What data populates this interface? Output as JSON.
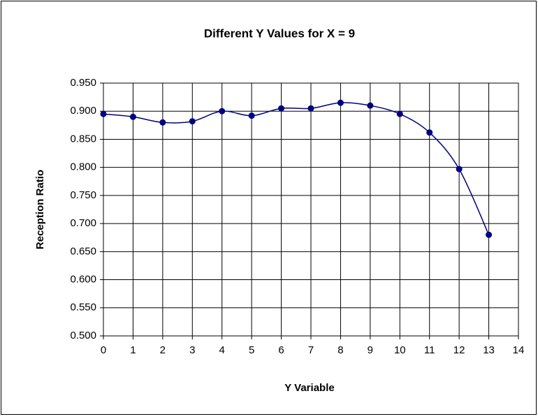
{
  "chart_data": {
    "type": "line",
    "title": "Different Y Values for X = 9",
    "x_label": "Y Variable",
    "y_label": "Reception Ratio",
    "x": [
      0,
      1,
      2,
      3,
      4,
      5,
      6,
      7,
      8,
      9,
      10,
      11,
      12,
      13
    ],
    "series": [
      {
        "name": "Reception Ratio",
        "color": "#000080",
        "values": [
          0.895,
          0.89,
          0.88,
          0.882,
          0.9,
          0.892,
          0.905,
          0.905,
          0.915,
          0.91,
          0.895,
          0.862,
          0.797,
          0.68
        ]
      }
    ],
    "xlim": [
      0,
      14
    ],
    "xticks": [
      0,
      1,
      2,
      3,
      4,
      5,
      6,
      7,
      8,
      9,
      10,
      11,
      12,
      13,
      14
    ],
    "ylim": [
      0.5,
      0.95
    ],
    "yticks": [
      {
        "value": 0.5,
        "label": "0.500"
      },
      {
        "value": 0.55,
        "label": "0.550"
      },
      {
        "value": 0.6,
        "label": "0.600"
      },
      {
        "value": 0.65,
        "label": "0.650"
      },
      {
        "value": 0.7,
        "label": "0.700"
      },
      {
        "value": 0.75,
        "label": "0.750"
      },
      {
        "value": 0.8,
        "label": "0.800"
      },
      {
        "value": 0.85,
        "label": "0.850"
      },
      {
        "value": 0.9,
        "label": "0.900"
      },
      {
        "value": 0.95,
        "label": "0.950"
      }
    ],
    "grid": true,
    "smooth": true
  }
}
